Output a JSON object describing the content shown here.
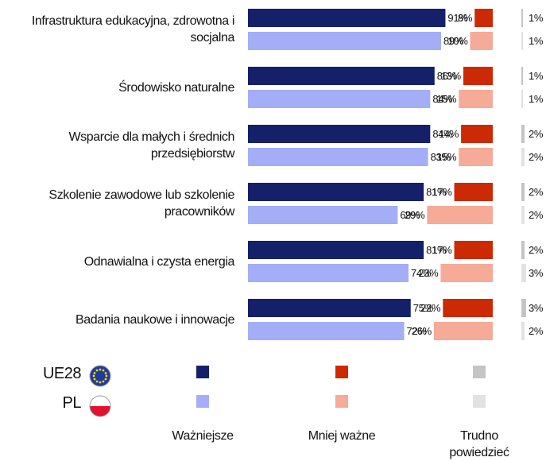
{
  "chart_data": {
    "type": "bar",
    "categories": [
      [
        "Infrastruktura edukacyjna, zdrowotna i",
        "socjalna"
      ],
      [
        "Środowisko naturalne"
      ],
      [
        "Wsparcie dla małych i średnich",
        "przedsiębiorstw"
      ],
      [
        "Szkolenie zawodowe lub szkolenie",
        "pracowników"
      ],
      [
        "Odnawialna i czysta energia"
      ],
      [
        "Badania naukowe i innowacje"
      ]
    ],
    "segments": [
      "Ważniejsze",
      "Mniej ważne",
      "Trudno powiedzieć"
    ],
    "xlim": [
      0,
      100
    ],
    "series": [
      {
        "name": "UE28",
        "colors": [
          "#15206b",
          "#cc2a04",
          "#c4c4c4"
        ],
        "values": [
          [
            91,
            8,
            1
          ],
          [
            86,
            13,
            1
          ],
          [
            84,
            14,
            2
          ],
          [
            81,
            17,
            2
          ],
          [
            81,
            17,
            2
          ],
          [
            75,
            22,
            3
          ]
        ],
        "value_labels": [
          [
            "91%",
            "8%",
            "1%"
          ],
          [
            "86%",
            "13%",
            "1%"
          ],
          [
            "84%",
            "14%",
            "2%"
          ],
          [
            "81%",
            "17%",
            "2%"
          ],
          [
            "81%",
            "17%",
            "2%"
          ],
          [
            "75%",
            "22%",
            "3%"
          ]
        ]
      },
      {
        "name": "PL",
        "colors": [
          "#a3aef7",
          "#f6aa98",
          "#e2e2e2"
        ],
        "values": [
          [
            89,
            10,
            1
          ],
          [
            84,
            15,
            1
          ],
          [
            83,
            15,
            2
          ],
          [
            69,
            29,
            2
          ],
          [
            74,
            23,
            3
          ],
          [
            72,
            26,
            2
          ]
        ],
        "value_labels": [
          [
            "89%",
            "10%",
            "1%"
          ],
          [
            "84%",
            "15%",
            "1%"
          ],
          [
            "83%",
            "15%",
            "2%"
          ],
          [
            "69%",
            "29%",
            "2%"
          ],
          [
            "74%",
            "23%",
            "3%"
          ],
          [
            "72%",
            "26%",
            "2%"
          ]
        ]
      }
    ]
  }
}
